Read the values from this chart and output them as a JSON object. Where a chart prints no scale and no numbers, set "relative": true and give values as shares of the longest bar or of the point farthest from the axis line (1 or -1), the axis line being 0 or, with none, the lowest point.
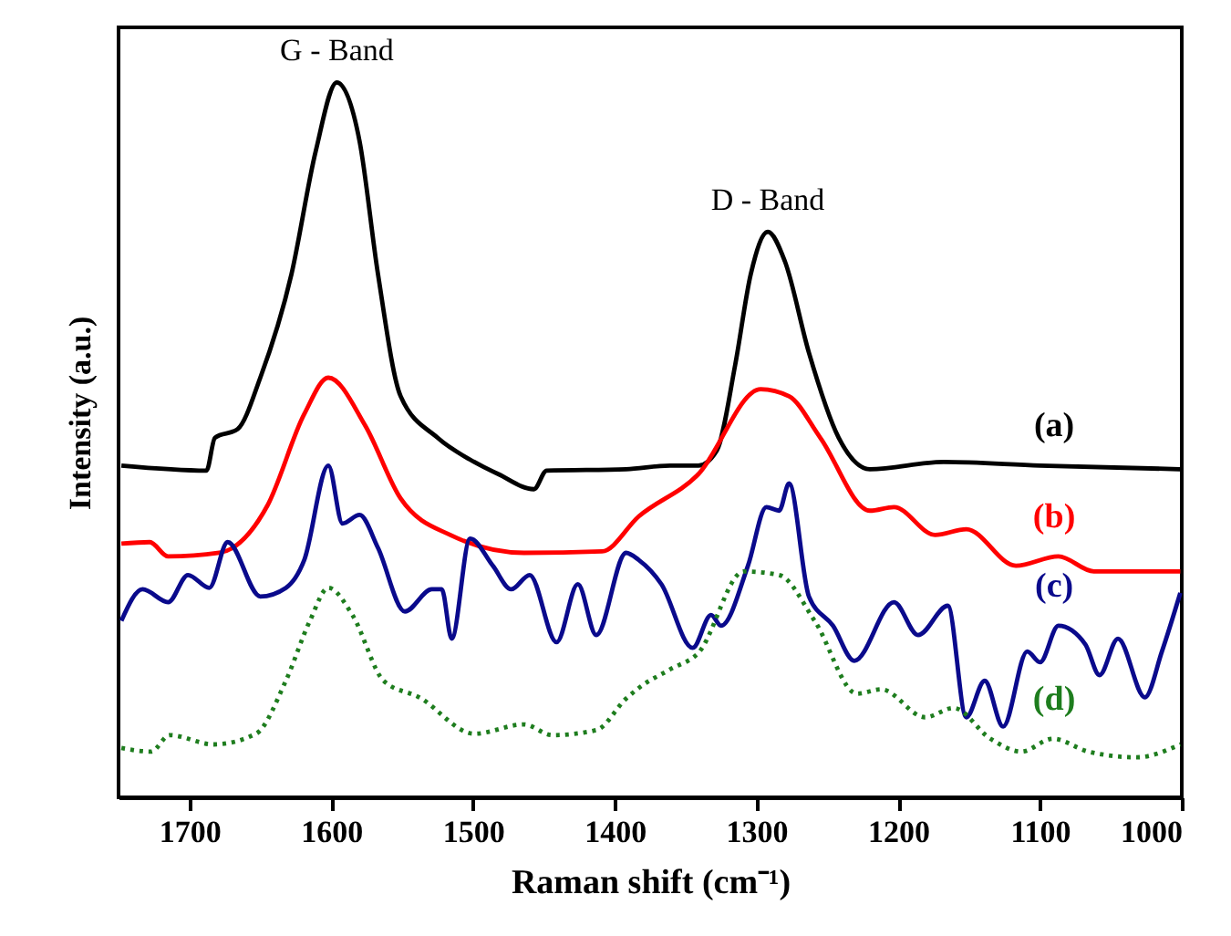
{
  "chart_data": {
    "type": "line",
    "relative": true,
    "xlabel": "Raman shift (cm⁻¹)",
    "ylabel": "Intensity (a.u.)",
    "xlim": [
      1750,
      1000
    ],
    "xticks": [
      1700,
      1600,
      1500,
      1400,
      1300,
      1200,
      1100,
      1000
    ],
    "grid": false,
    "marker": "none",
    "annotations": [
      "G - Band",
      "D - Band"
    ],
    "series": [
      {
        "name": "(a)",
        "color": "#000000",
        "line_style": "solid",
        "x": [
          1748,
          1688,
          1682,
          1666,
          1650,
          1628,
          1611,
          1596,
          1580,
          1567,
          1551,
          1525,
          1499,
          1482,
          1457,
          1448,
          1392,
          1361,
          1341,
          1328,
          1315,
          1304,
          1292,
          1280,
          1263,
          1242,
          1220,
          1168,
          1100,
          1001
        ],
        "values": [
          0.464,
          0.457,
          0.503,
          0.515,
          0.587,
          0.732,
          0.903,
          1.0,
          0.918,
          0.732,
          0.561,
          0.503,
          0.469,
          0.452,
          0.431,
          0.457,
          0.459,
          0.464,
          0.464,
          0.485,
          0.605,
          0.732,
          0.791,
          0.75,
          0.622,
          0.503,
          0.459,
          0.469,
          0.464,
          0.459
        ]
      },
      {
        "name": "(b)",
        "color": "#ff0000",
        "line_style": "solid",
        "x": [
          1748,
          1728,
          1715,
          1679,
          1645,
          1619,
          1602,
          1576,
          1551,
          1516,
          1464,
          1409,
          1383,
          1341,
          1297,
          1277,
          1255,
          1220,
          1203,
          1174,
          1152,
          1117,
          1087,
          1062,
          1001
        ],
        "values": [
          0.355,
          0.357,
          0.337,
          0.342,
          0.408,
          0.536,
          0.587,
          0.52,
          0.418,
          0.367,
          0.342,
          0.344,
          0.393,
          0.452,
          0.571,
          0.561,
          0.503,
          0.401,
          0.406,
          0.367,
          0.375,
          0.324,
          0.337,
          0.316,
          0.316
        ]
      },
      {
        "name": "(c)",
        "color": "#0a0a8c",
        "line_style": "solid",
        "x": [
          1748,
          1733,
          1715,
          1701,
          1686,
          1673,
          1650,
          1632,
          1619,
          1602,
          1592,
          1580,
          1567,
          1548,
          1529,
          1522,
          1515,
          1502,
          1486,
          1473,
          1460,
          1441,
          1426,
          1413,
          1392,
          1383,
          1367,
          1345,
          1332,
          1325,
          1306,
          1293,
          1284,
          1277,
          1263,
          1246,
          1231,
          1203,
          1186,
          1165,
          1152,
          1139,
          1126,
          1109,
          1100,
          1087,
          1068,
          1058,
          1045,
          1026,
          1014,
          1001
        ],
        "values": [
          0.247,
          0.291,
          0.273,
          0.311,
          0.293,
          0.357,
          0.281,
          0.293,
          0.332,
          0.464,
          0.383,
          0.395,
          0.349,
          0.26,
          0.291,
          0.291,
          0.222,
          0.362,
          0.324,
          0.291,
          0.311,
          0.217,
          0.298,
          0.227,
          0.342,
          0.332,
          0.298,
          0.209,
          0.255,
          0.24,
          0.324,
          0.406,
          0.401,
          0.439,
          0.281,
          0.24,
          0.191,
          0.273,
          0.227,
          0.268,
          0.112,
          0.163,
          0.099,
          0.204,
          0.189,
          0.24,
          0.214,
          0.171,
          0.222,
          0.14,
          0.204,
          0.286
        ]
      },
      {
        "name": "(d)",
        "color": "#1e7d1e",
        "line_style": "dotted",
        "x": [
          1748,
          1727,
          1714,
          1683,
          1653,
          1632,
          1615,
          1602,
          1585,
          1563,
          1538,
          1499,
          1464,
          1444,
          1413,
          1392,
          1383,
          1361,
          1341,
          1309,
          1284,
          1259,
          1229,
          1212,
          1181,
          1161,
          1135,
          1113,
          1091,
          1066,
          1032,
          1001
        ],
        "values": [
          0.069,
          0.064,
          0.087,
          0.074,
          0.089,
          0.163,
          0.247,
          0.293,
          0.255,
          0.163,
          0.14,
          0.089,
          0.102,
          0.087,
          0.094,
          0.138,
          0.153,
          0.179,
          0.202,
          0.316,
          0.311,
          0.247,
          0.145,
          0.151,
          0.112,
          0.125,
          0.082,
          0.064,
          0.082,
          0.064,
          0.056,
          0.074
        ]
      }
    ]
  }
}
